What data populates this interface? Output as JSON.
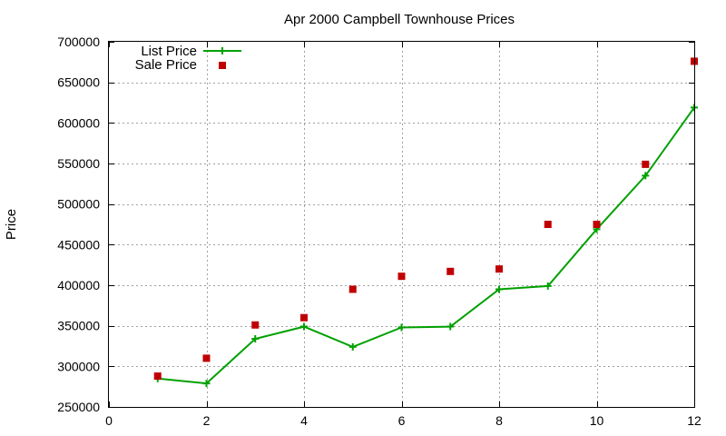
{
  "chart_data": {
    "type": "line",
    "title": "Apr 2000 Campbell Townhouse Prices",
    "xlabel": "",
    "ylabel": "Price",
    "xlim": [
      0,
      12
    ],
    "ylim": [
      250000,
      700000
    ],
    "xticks": [
      0,
      2,
      4,
      6,
      8,
      10,
      12
    ],
    "yticks": [
      250000,
      300000,
      350000,
      400000,
      450000,
      500000,
      550000,
      600000,
      650000,
      700000
    ],
    "grid": true,
    "legend_position": "top-left",
    "series": [
      {
        "name": "List Price",
        "style": "line+cross",
        "color": "#00a000",
        "x": [
          1,
          2,
          3,
          4,
          5,
          6,
          7,
          8,
          9,
          10,
          11,
          12
        ],
        "y": [
          285000,
          279000,
          334000,
          349000,
          324000,
          348000,
          349000,
          395000,
          399000,
          469000,
          535000,
          619000
        ]
      },
      {
        "name": "Sale Price",
        "style": "square",
        "color": "#c00000",
        "x": [
          1,
          2,
          3,
          4,
          5,
          6,
          7,
          8,
          9,
          10,
          11,
          12
        ],
        "y": [
          288000,
          310000,
          351000,
          360000,
          395000,
          411000,
          417000,
          420000,
          475000,
          475000,
          549000,
          676000
        ]
      }
    ]
  }
}
